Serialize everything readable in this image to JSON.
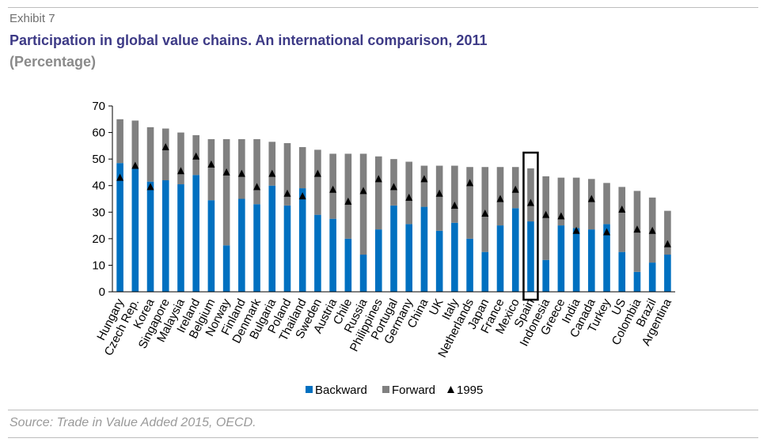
{
  "header": {
    "exhibit": "Exhibit 7",
    "title": "Participation in global value chains. An international comparison, 2011",
    "subtitle": "(Percentage)"
  },
  "footer": {
    "source": "Source: Trade in Value Added 2015, OECD."
  },
  "colors": {
    "backward": "#0070c0",
    "forward": "#808080",
    "marker": "#000000",
    "highlight": "#000000"
  },
  "chart_data": {
    "type": "bar",
    "stacked": true,
    "ylim": [
      0,
      70
    ],
    "yticks": [
      0,
      10,
      20,
      30,
      40,
      50,
      60,
      70
    ],
    "grid": false,
    "legend_position": "bottom",
    "highlighted_category": "Spain",
    "categories": [
      "Hungary",
      "Czech Rep.",
      "Korea",
      "Singapore",
      "Malaysia",
      "Ireland",
      "Belgium",
      "Norway",
      "Finland",
      "Denmark",
      "Bulgaria",
      "Poland",
      "Thailand",
      "Sweden",
      "Austria",
      "Chile",
      "Russia",
      "Philippines",
      "Portugal",
      "Germany",
      "China",
      "UK",
      "Italy",
      "Netherlands",
      "Japan",
      "France",
      "Mexico",
      "Spain",
      "Indonesia",
      "Greece",
      "India",
      "Canada",
      "Turkey",
      "US",
      "Colombia",
      "Brazil",
      "Argentina"
    ],
    "series": [
      {
        "name": "Backward",
        "kind": "bar",
        "values": [
          48.5,
          46.5,
          41.5,
          42,
          40.5,
          44,
          34.5,
          17.5,
          35,
          33,
          40,
          32.5,
          39,
          29,
          27.5,
          20,
          14,
          23.5,
          32.5,
          25.5,
          32,
          23,
          26,
          20,
          15,
          25,
          31.5,
          26.5,
          12,
          25,
          24,
          23.5,
          25.5,
          15,
          7.5,
          11,
          14
        ]
      },
      {
        "name": "Forward",
        "kind": "bar",
        "values": [
          16.5,
          18,
          20.5,
          19.5,
          19.5,
          15,
          23,
          40,
          22.5,
          24.5,
          16.5,
          23.5,
          15.5,
          24.5,
          24.5,
          32,
          38,
          27.5,
          17.5,
          23.5,
          15.5,
          24.5,
          21.5,
          27,
          32,
          22,
          15.5,
          20,
          31.5,
          18,
          19,
          19,
          15.5,
          24.5,
          30.5,
          24.5,
          16.5
        ]
      },
      {
        "name": "1995",
        "kind": "marker",
        "values": [
          43,
          47.5,
          39.5,
          54.5,
          45.5,
          51,
          48,
          45,
          44.5,
          39.5,
          44.5,
          37,
          36,
          44.5,
          38.5,
          34,
          38,
          42.5,
          39.5,
          35.5,
          42.5,
          37,
          32.5,
          41,
          29.5,
          35,
          38.5,
          33.5,
          29,
          28.5,
          23,
          35,
          22.5,
          31,
          23.5,
          23,
          18
        ]
      }
    ]
  }
}
